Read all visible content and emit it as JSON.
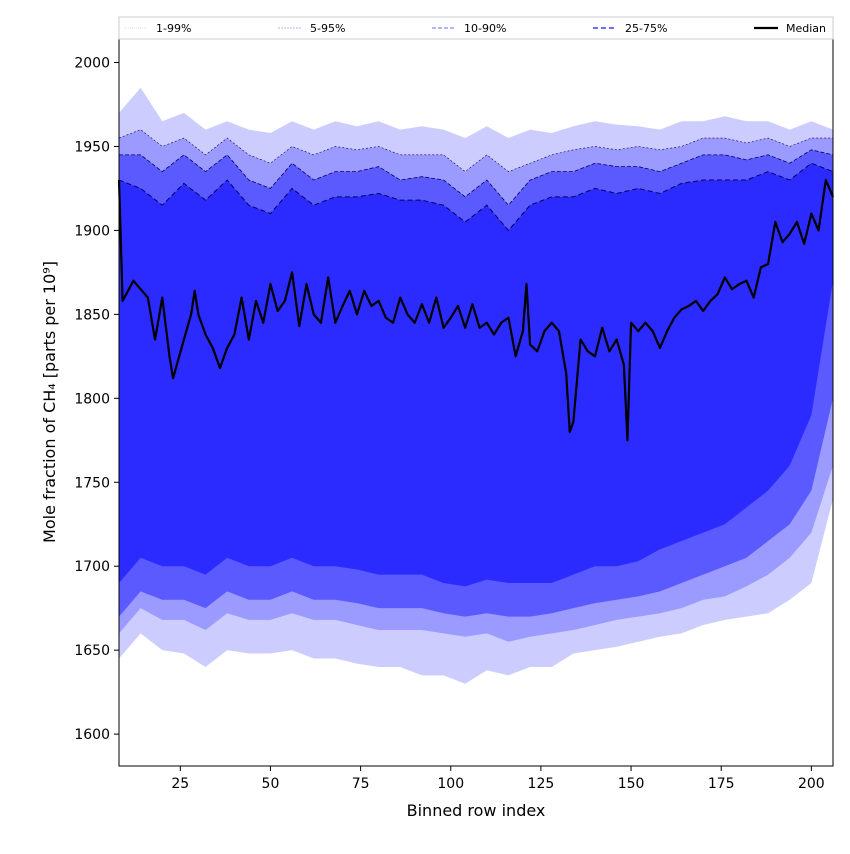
{
  "chart_data": {
    "type": "area",
    "title": "",
    "xlabel": "Binned row index",
    "ylabel": "Mole fraction of CH₄ [parts per 10⁹]",
    "xlim": [
      8,
      206
    ],
    "ylim": [
      1581,
      2014
    ],
    "xticks": [
      25,
      50,
      75,
      100,
      125,
      150,
      175,
      200
    ],
    "yticks": [
      1600,
      1650,
      1700,
      1750,
      1800,
      1850,
      1900,
      1950,
      2000
    ],
    "grid": false,
    "legend": {
      "placement": "top",
      "entries": [
        {
          "label": "1-99%",
          "color": "#ccccff",
          "style": "dotted"
        },
        {
          "label": "5-95%",
          "color": "#9a9aff",
          "style": "dashed-thin"
        },
        {
          "label": "10-90%",
          "color": "#6a6aff",
          "style": "dashed"
        },
        {
          "label": "25-75%",
          "color": "#3c3cff",
          "style": "dashed-thick"
        },
        {
          "label": "Median",
          "color": "#000000",
          "style": "solid"
        }
      ]
    },
    "band_colors": {
      "p1_99": "#ccccff",
      "p5_95": "#9a9aff",
      "p10_90": "#5a5aff",
      "p25_75": "#2b2bff"
    },
    "bands_x": [
      8,
      14,
      20,
      26,
      32,
      38,
      44,
      50,
      56,
      62,
      68,
      74,
      80,
      86,
      92,
      98,
      104,
      110,
      116,
      122,
      128,
      134,
      140,
      146,
      152,
      158,
      164,
      170,
      176,
      182,
      188,
      194,
      200,
      206
    ],
    "p99": [
      1970,
      1985,
      1965,
      1970,
      1960,
      1965,
      1960,
      1958,
      1965,
      1960,
      1965,
      1962,
      1965,
      1960,
      1962,
      1960,
      1955,
      1962,
      1955,
      1960,
      1958,
      1962,
      1965,
      1963,
      1962,
      1960,
      1965,
      1965,
      1968,
      1965,
      1965,
      1960,
      1965,
      1960
    ],
    "p95": [
      1955,
      1960,
      1950,
      1955,
      1945,
      1955,
      1945,
      1940,
      1950,
      1945,
      1950,
      1948,
      1950,
      1945,
      1945,
      1945,
      1935,
      1945,
      1935,
      1940,
      1945,
      1948,
      1950,
      1948,
      1950,
      1948,
      1950,
      1955,
      1955,
      1952,
      1955,
      1950,
      1955,
      1955
    ],
    "p90": [
      1945,
      1945,
      1935,
      1945,
      1935,
      1945,
      1930,
      1925,
      1940,
      1930,
      1935,
      1935,
      1938,
      1930,
      1932,
      1930,
      1920,
      1930,
      1915,
      1930,
      1935,
      1935,
      1940,
      1938,
      1938,
      1935,
      1940,
      1945,
      1945,
      1942,
      1945,
      1940,
      1948,
      1945
    ],
    "p75": [
      1930,
      1925,
      1915,
      1928,
      1918,
      1930,
      1915,
      1910,
      1925,
      1915,
      1920,
      1920,
      1922,
      1918,
      1918,
      1915,
      1905,
      1915,
      1900,
      1915,
      1920,
      1920,
      1925,
      1922,
      1925,
      1922,
      1928,
      1930,
      1930,
      1930,
      1935,
      1930,
      1940,
      1935
    ],
    "p25": [
      1690,
      1705,
      1700,
      1700,
      1695,
      1705,
      1700,
      1700,
      1705,
      1700,
      1700,
      1698,
      1695,
      1695,
      1695,
      1690,
      1688,
      1692,
      1690,
      1690,
      1690,
      1695,
      1700,
      1700,
      1703,
      1710,
      1715,
      1720,
      1725,
      1735,
      1745,
      1760,
      1790,
      1870
    ],
    "p10": [
      1670,
      1685,
      1680,
      1680,
      1675,
      1685,
      1680,
      1680,
      1685,
      1680,
      1680,
      1678,
      1675,
      1675,
      1675,
      1672,
      1670,
      1672,
      1670,
      1670,
      1672,
      1675,
      1678,
      1680,
      1682,
      1685,
      1690,
      1695,
      1700,
      1705,
      1715,
      1725,
      1745,
      1800
    ],
    "p5": [
      1660,
      1675,
      1668,
      1668,
      1662,
      1672,
      1668,
      1668,
      1672,
      1668,
      1668,
      1665,
      1662,
      1662,
      1662,
      1660,
      1658,
      1660,
      1655,
      1658,
      1660,
      1662,
      1665,
      1668,
      1670,
      1672,
      1675,
      1680,
      1682,
      1688,
      1695,
      1705,
      1720,
      1760
    ],
    "p1": [
      1645,
      1660,
      1650,
      1648,
      1640,
      1650,
      1648,
      1648,
      1650,
      1645,
      1645,
      1642,
      1640,
      1640,
      1635,
      1635,
      1630,
      1638,
      1635,
      1640,
      1640,
      1648,
      1650,
      1652,
      1655,
      1658,
      1660,
      1665,
      1668,
      1670,
      1672,
      1680,
      1690,
      1740
    ],
    "median": {
      "x": [
        8,
        9,
        12,
        14,
        16,
        18,
        20,
        22,
        23,
        26,
        28,
        29,
        30,
        32,
        34,
        36,
        38,
        40,
        42,
        44,
        46,
        48,
        50,
        52,
        54,
        56,
        58,
        60,
        62,
        64,
        66,
        68,
        70,
        72,
        74,
        76,
        78,
        80,
        82,
        84,
        86,
        88,
        90,
        92,
        94,
        96,
        98,
        100,
        102,
        104,
        106,
        108,
        110,
        112,
        114,
        116,
        118,
        120,
        121,
        122,
        124,
        126,
        128,
        130,
        132,
        133,
        134,
        136,
        138,
        140,
        142,
        144,
        146,
        148,
        149,
        150,
        152,
        154,
        156,
        158,
        160,
        162,
        164,
        166,
        168,
        170,
        172,
        174,
        176,
        178,
        180,
        182,
        184,
        186,
        188,
        190,
        192,
        194,
        196,
        198,
        200,
        202,
        204,
        206
      ],
      "y": [
        1930,
        1858,
        1870,
        1865,
        1860,
        1835,
        1860,
        1825,
        1812,
        1835,
        1850,
        1864,
        1850,
        1838,
        1830,
        1818,
        1830,
        1838,
        1860,
        1835,
        1858,
        1845,
        1868,
        1852,
        1858,
        1875,
        1843,
        1868,
        1850,
        1845,
        1872,
        1845,
        1855,
        1864,
        1850,
        1864,
        1855,
        1858,
        1848,
        1845,
        1860,
        1850,
        1845,
        1856,
        1845,
        1860,
        1842,
        1848,
        1855,
        1842,
        1856,
        1842,
        1845,
        1838,
        1845,
        1848,
        1825,
        1840,
        1868,
        1832,
        1828,
        1840,
        1845,
        1840,
        1815,
        1780,
        1786,
        1835,
        1828,
        1825,
        1842,
        1828,
        1835,
        1820,
        1775,
        1845,
        1840,
        1845,
        1840,
        1830,
        1840,
        1848,
        1853,
        1855,
        1858,
        1852,
        1858,
        1862,
        1872,
        1865,
        1868,
        1870,
        1860,
        1878,
        1880,
        1905,
        1893,
        1898,
        1905,
        1892,
        1910,
        1900,
        1930,
        1920
      ]
    }
  }
}
